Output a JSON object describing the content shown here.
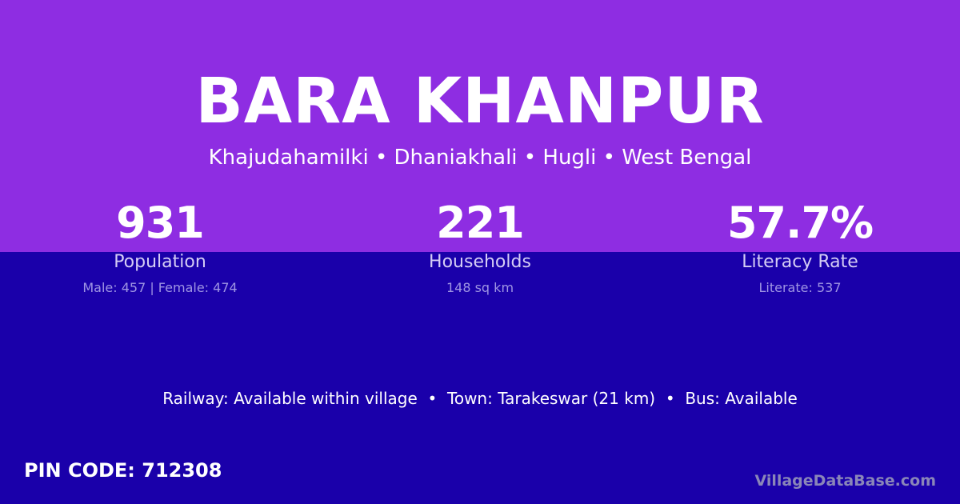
{
  "header": {
    "title": "BARA KHANPUR",
    "subtitle": "Khajudahamilki • Dhaniakhali • Hugli • West Bengal"
  },
  "stats": [
    {
      "value": "931",
      "label": "Population",
      "detail": "Male: 457 | Female: 474"
    },
    {
      "value": "221",
      "label": "Households",
      "detail": "148 sq km"
    },
    {
      "value": "57.7%",
      "label": "Literacy Rate",
      "detail": "Literate: 537"
    }
  ],
  "info": "Railway: Available within village  •  Town: Tarakeswar (21 km)  •  Bus: Available",
  "pin": "PIN CODE: 712308",
  "brand": "VillageDataBase.com",
  "colors": {
    "top": "#8e2de2",
    "bottom": "#1a00aa"
  }
}
